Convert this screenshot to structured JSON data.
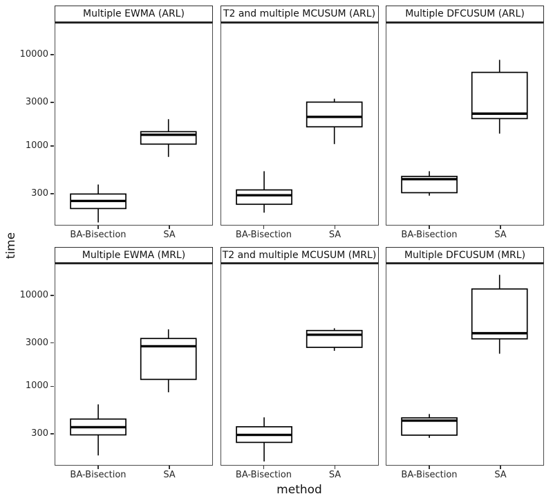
{
  "chart_data": {
    "type": "boxplot",
    "facet_grid": {
      "rows": 2,
      "cols": 3
    },
    "title": "",
    "xlabel": "method",
    "ylabel": "time",
    "yscale": "log10",
    "ylim": [
      134,
      22800
    ],
    "yticks": [
      300,
      1000,
      3000,
      10000
    ],
    "ytick_labels": [
      "300",
      "1000",
      "3000",
      "10000"
    ],
    "categories": [
      "BA-Bisection",
      "SA"
    ],
    "grid": false,
    "legend": "none",
    "facets": [
      {
        "title": "Multiple EWMA (ARL)",
        "boxes": [
          {
            "category": "BA-Bisection",
            "whisker_low": 140,
            "q1": 200,
            "median": 243,
            "q3": 290,
            "whisker_high": 370
          },
          {
            "category": "SA",
            "whisker_low": 750,
            "q1": 1040,
            "median": 1320,
            "q3": 1430,
            "whisker_high": 1970
          }
        ]
      },
      {
        "title": "T2 and multiple MCUSUM (ARL)",
        "boxes": [
          {
            "category": "BA-Bisection",
            "whisker_low": 180,
            "q1": 223,
            "median": 281,
            "q3": 322,
            "whisker_high": 520
          },
          {
            "category": "SA",
            "whisker_low": 1040,
            "q1": 1620,
            "median": 2090,
            "q3": 3050,
            "whisker_high": 3330
          }
        ]
      },
      {
        "title": "Multiple DFCUSUM (ARL)",
        "boxes": [
          {
            "category": "BA-Bisection",
            "whisker_low": 278,
            "q1": 300,
            "median": 424,
            "q3": 455,
            "whisker_high": 520
          },
          {
            "category": "SA",
            "whisker_low": 1360,
            "q1": 2000,
            "median": 2270,
            "q3": 6530,
            "whisker_high": 9000
          }
        ]
      },
      {
        "title": "Multiple EWMA (MRL)",
        "boxes": [
          {
            "category": "BA-Bisection",
            "whisker_low": 168,
            "q1": 285,
            "median": 347,
            "q3": 428,
            "whisker_high": 624
          },
          {
            "category": "SA",
            "whisker_low": 850,
            "q1": 1185,
            "median": 2780,
            "q3": 3390,
            "whisker_high": 4290
          }
        ]
      },
      {
        "title": "T2 and multiple MCUSUM (MRL)",
        "boxes": [
          {
            "category": "BA-Bisection",
            "whisker_low": 144,
            "q1": 235,
            "median": 285,
            "q3": 351,
            "whisker_high": 447
          },
          {
            "category": "SA",
            "whisker_low": 2470,
            "q1": 2700,
            "median": 3730,
            "q3": 4160,
            "whisker_high": 4410
          }
        ]
      },
      {
        "title": "Multiple DFCUSUM (MRL)",
        "boxes": [
          {
            "category": "BA-Bisection",
            "whisker_low": 264,
            "q1": 283,
            "median": 411,
            "q3": 441,
            "whisker_high": 487
          },
          {
            "category": "SA",
            "whisker_low": 2290,
            "q1": 3360,
            "median": 3880,
            "q3": 12100,
            "whisker_high": 17400
          }
        ]
      }
    ]
  }
}
